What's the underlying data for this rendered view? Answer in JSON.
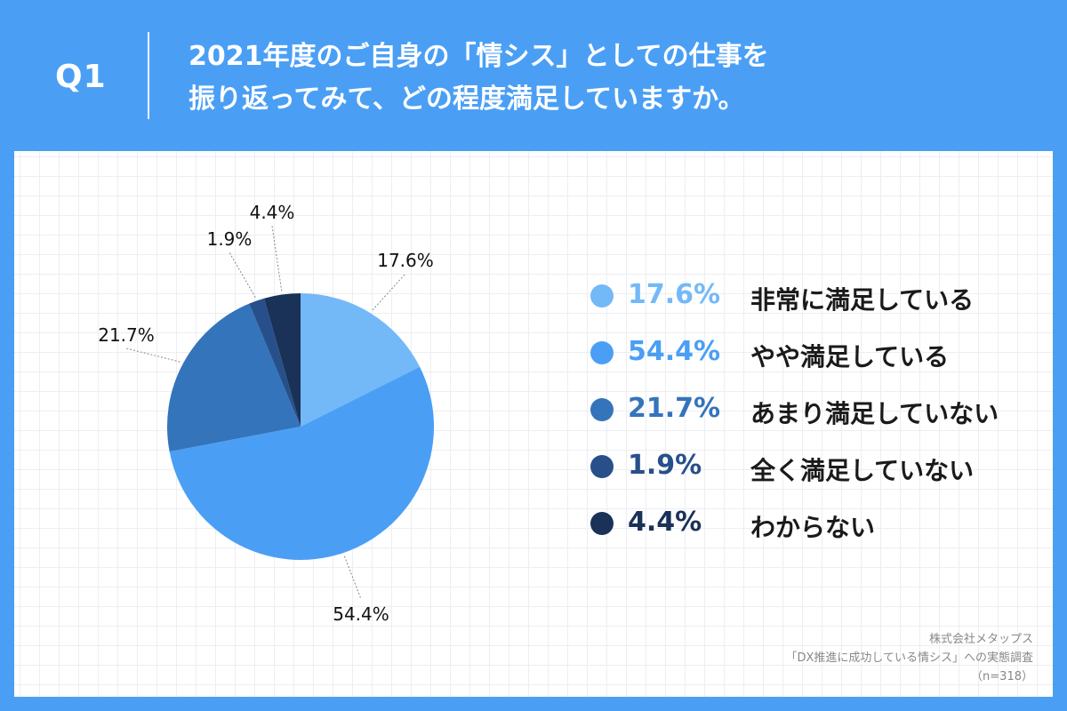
{
  "header": {
    "q_label": "Q1",
    "title_line1": "2021年度のご自身の「情シス」としての仕事を",
    "title_line2": "振り返ってみて、どの程度満足していますか。"
  },
  "chart_data": {
    "type": "pie",
    "title": "",
    "slices": [
      {
        "label": "非常に満足している",
        "value": 17.6,
        "display": "17.6%",
        "color": "#73b9f8"
      },
      {
        "label": "やや満足している",
        "value": 54.4,
        "display": "54.4%",
        "color": "#4a9ff5"
      },
      {
        "label": "あまり満足していない",
        "value": 21.7,
        "display": "21.7%",
        "color": "#3474bb"
      },
      {
        "label": "全く満足していない",
        "value": 1.9,
        "display": "1.9%",
        "color": "#27508a"
      },
      {
        "label": "わからない",
        "value": 4.4,
        "display": "4.4%",
        "color": "#1a3158"
      }
    ],
    "legend_position": "right",
    "data_labels": "outside with leader lines"
  },
  "source": {
    "line1": "株式会社メタップス",
    "line2": "「DX推進に成功している情シス」への実態調査",
    "line3": "（n=318）"
  }
}
